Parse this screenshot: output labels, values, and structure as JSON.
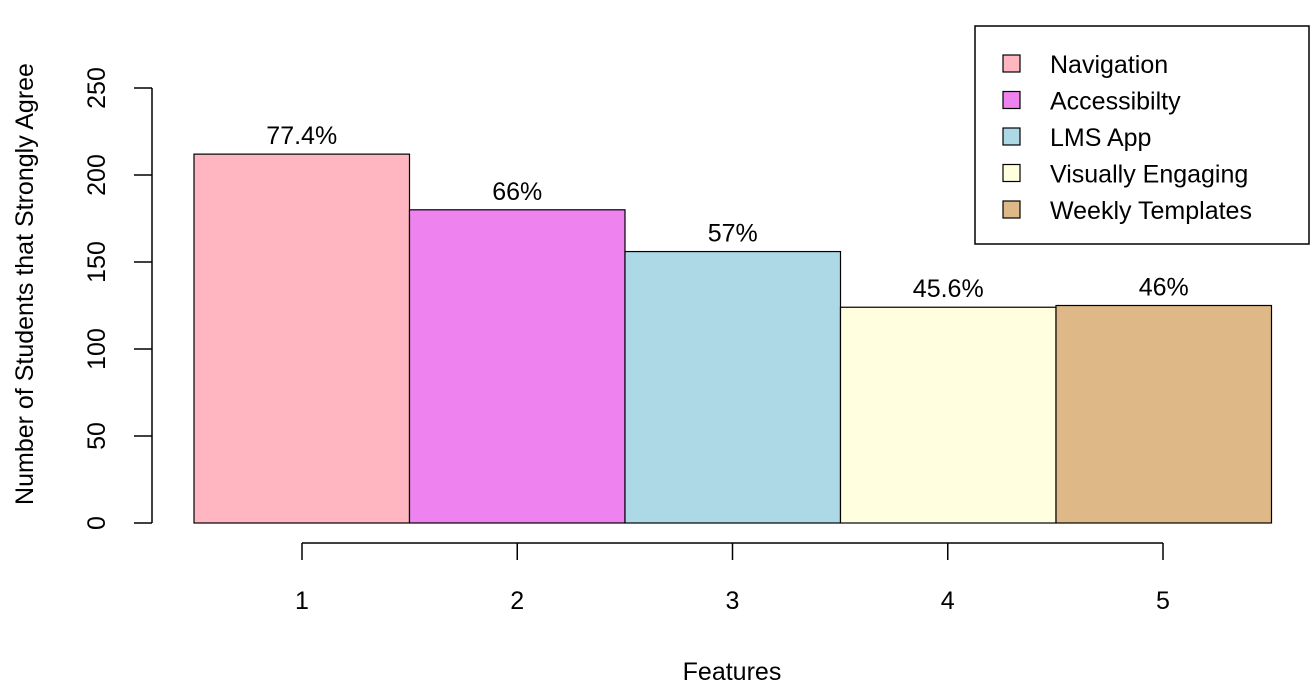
{
  "chart_data": {
    "type": "bar",
    "title": "",
    "xlabel": "Features",
    "ylabel": "Number of Students that Strongly Agree",
    "categories": [
      "1",
      "2",
      "3",
      "4",
      "5"
    ],
    "values": [
      212,
      180,
      156,
      124,
      125
    ],
    "data_labels": [
      "77.4%",
      "66%",
      "57%",
      "45.6%",
      "46%"
    ],
    "colors": [
      "#FFB6C1",
      "#EE82EE",
      "#ADD8E6",
      "#FFFFE0",
      "#DEB887"
    ],
    "ylim": [
      0,
      250
    ],
    "yticks": [
      0,
      50,
      100,
      150,
      200,
      250
    ],
    "grid": false,
    "legend": {
      "position": "top-right",
      "entries": [
        "Navigation",
        "Accessibilty",
        "LMS App",
        "Visually Engaging",
        "Weekly Templates"
      ]
    }
  }
}
